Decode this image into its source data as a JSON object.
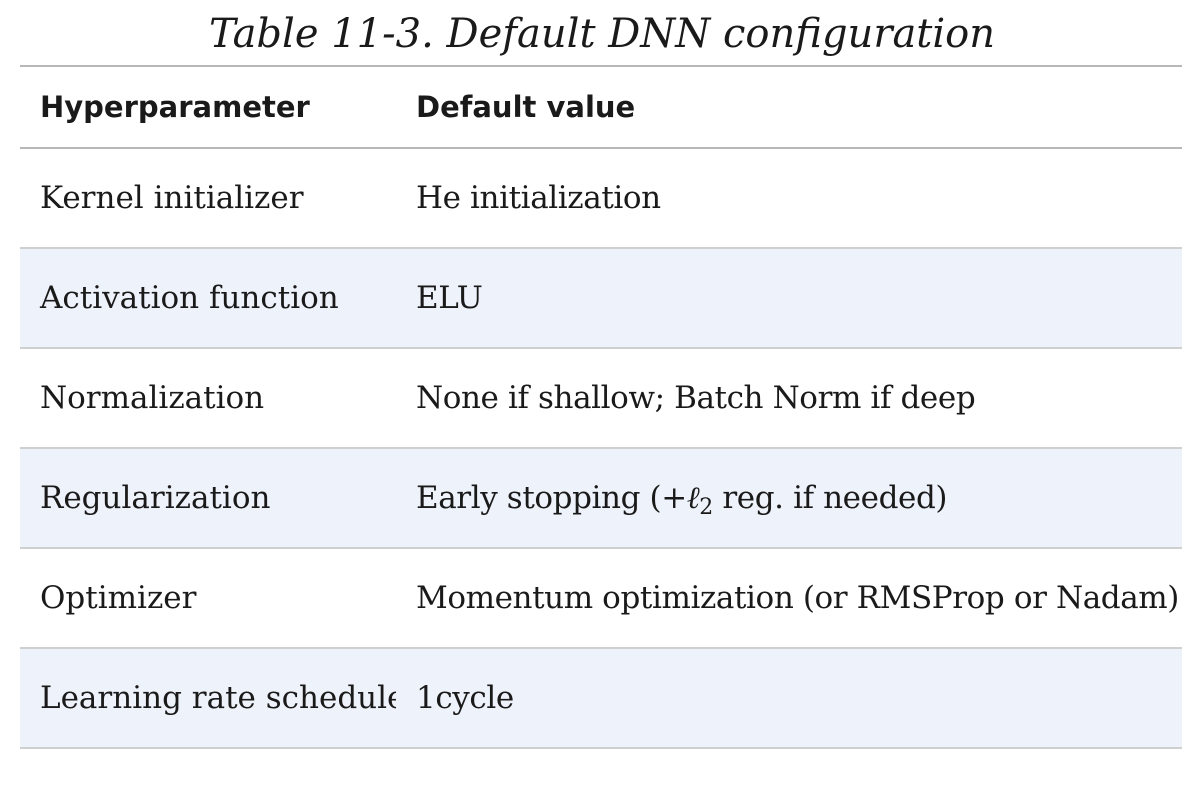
{
  "caption": "Table 11-3. Default DNN configuration",
  "table": {
    "headers": [
      "Hyperparameter",
      "Default value"
    ],
    "rows": [
      {
        "param": "Kernel initializer",
        "value": "He initialization"
      },
      {
        "param": "Activation function",
        "value": "ELU"
      },
      {
        "param": "Normalization",
        "value": "None if shallow; Batch Norm if deep"
      },
      {
        "param": "Regularization",
        "value_prefix": "Early stopping (+",
        "value_symbol": "ℓ",
        "value_subscript": "2",
        "value_suffix": " reg. if needed)"
      },
      {
        "param": "Optimizer",
        "value": "Momentum optimization (or RMSProp or Nadam)"
      },
      {
        "param": "Learning rate schedule",
        "value": "1cycle"
      }
    ]
  },
  "colors": {
    "alt_row_background": "#eef2fa",
    "rule": "#b8b8b8"
  }
}
